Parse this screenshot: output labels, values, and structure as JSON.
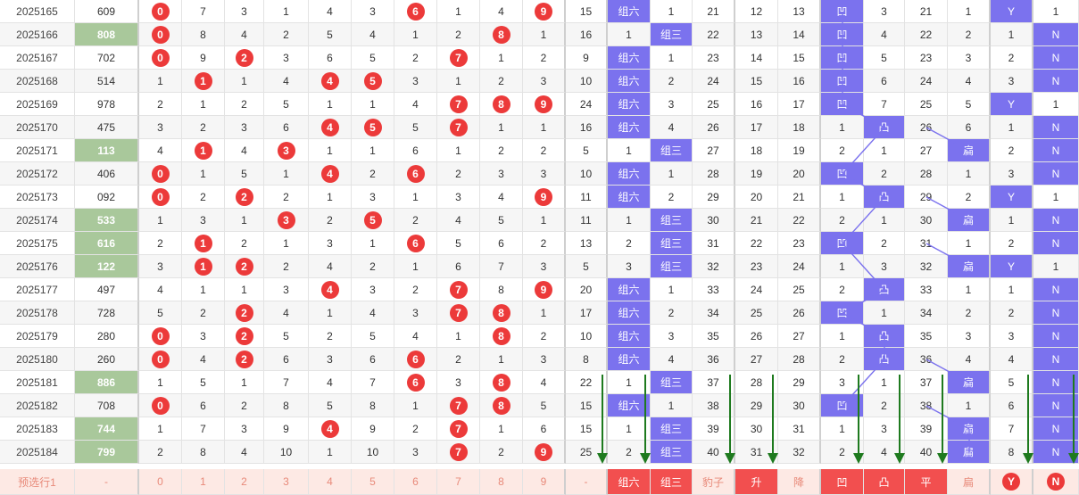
{
  "rows": [
    {
      "issue": "2025165",
      "num": "609",
      "green": false,
      "d": [
        "0",
        "7",
        "3",
        "1",
        "4",
        "3",
        "6",
        "1",
        "4",
        "9"
      ],
      "ball": [
        0,
        6,
        9
      ],
      "sum": "15",
      "zl": "组六",
      "z3": "1",
      "c1": "21",
      "c2": "12",
      "c3": "13",
      "ao": "凹",
      "tu": "3",
      "p": "21",
      "bian": "1",
      "y": "Y",
      "n": "1"
    },
    {
      "issue": "2025166",
      "num": "808",
      "green": true,
      "d": [
        "0",
        "8",
        "4",
        "2",
        "5",
        "4",
        "1",
        "2",
        "8",
        "1"
      ],
      "ball": [
        0,
        8
      ],
      "sum": "16",
      "zl": "1",
      "z3": "组三",
      "c1": "22",
      "c2": "13",
      "c3": "14",
      "ao": "凹",
      "tu": "4",
      "p": "22",
      "bian": "2",
      "y": "1",
      "n": "N"
    },
    {
      "issue": "2025167",
      "num": "702",
      "green": false,
      "d": [
        "0",
        "9",
        "2",
        "3",
        "6",
        "5",
        "2",
        "7",
        "1",
        "2"
      ],
      "ball": [
        0,
        2,
        7
      ],
      "sum": "9",
      "zl": "组六",
      "z3": "1",
      "c1": "23",
      "c2": "14",
      "c3": "15",
      "ao": "凹",
      "tu": "5",
      "p": "23",
      "bian": "3",
      "y": "2",
      "n": "N"
    },
    {
      "issue": "2025168",
      "num": "514",
      "green": false,
      "d": [
        "1",
        "1",
        "1",
        "4",
        "4",
        "5",
        "3",
        "1",
        "2",
        "3"
      ],
      "ball": [
        1,
        4,
        5
      ],
      "sum": "10",
      "zl": "组六",
      "z3": "2",
      "c1": "24",
      "c2": "15",
      "c3": "16",
      "ao": "凹",
      "tu": "6",
      "p": "24",
      "bian": "4",
      "y": "3",
      "n": "N"
    },
    {
      "issue": "2025169",
      "num": "978",
      "green": false,
      "d": [
        "2",
        "1",
        "2",
        "5",
        "1",
        "1",
        "4",
        "7",
        "8",
        "9"
      ],
      "ball": [
        7,
        8,
        9
      ],
      "sum": "24",
      "zl": "组六",
      "z3": "3",
      "c1": "25",
      "c2": "16",
      "c3": "17",
      "ao": "凹",
      "tu": "7",
      "p": "25",
      "bian": "5",
      "y": "Y",
      "n": "1"
    },
    {
      "issue": "2025170",
      "num": "475",
      "green": false,
      "d": [
        "3",
        "2",
        "3",
        "6",
        "4",
        "5",
        "5",
        "7",
        "1",
        "1"
      ],
      "ball": [
        4,
        5,
        7
      ],
      "sum": "16",
      "zl": "组六",
      "z3": "4",
      "c1": "26",
      "c2": "17",
      "c3": "18",
      "ao": "1",
      "tu": "凸",
      "p": "26",
      "bian": "6",
      "y": "1",
      "n": "N"
    },
    {
      "issue": "2025171",
      "num": "113",
      "green": true,
      "d": [
        "4",
        "1",
        "4",
        "3",
        "1",
        "1",
        "6",
        "1",
        "2",
        "2"
      ],
      "ball": [
        1,
        3
      ],
      "sum": "5",
      "zl": "1",
      "z3": "组三",
      "c1": "27",
      "c2": "18",
      "c3": "19",
      "ao": "2",
      "tu": "1",
      "p": "27",
      "bian": "扁",
      "y": "2",
      "n": "N"
    },
    {
      "issue": "2025172",
      "num": "406",
      "green": false,
      "d": [
        "0",
        "1",
        "5",
        "1",
        "4",
        "2",
        "6",
        "2",
        "3",
        "3"
      ],
      "ball": [
        0,
        4,
        6
      ],
      "sum": "10",
      "zl": "组六",
      "z3": "1",
      "c1": "28",
      "c2": "19",
      "c3": "20",
      "ao": "凹",
      "tu": "2",
      "p": "28",
      "bian": "1",
      "y": "3",
      "n": "N"
    },
    {
      "issue": "2025173",
      "num": "092",
      "green": false,
      "d": [
        "0",
        "2",
        "2",
        "2",
        "1",
        "3",
        "1",
        "3",
        "4",
        "9"
      ],
      "ball": [
        0,
        2,
        9
      ],
      "sum": "11",
      "zl": "组六",
      "z3": "2",
      "c1": "29",
      "c2": "20",
      "c3": "21",
      "ao": "1",
      "tu": "凸",
      "p": "29",
      "bian": "2",
      "y": "Y",
      "n": "1"
    },
    {
      "issue": "2025174",
      "num": "533",
      "green": true,
      "d": [
        "1",
        "3",
        "1",
        "3",
        "2",
        "5",
        "2",
        "4",
        "5",
        "1"
      ],
      "ball": [
        3,
        5
      ],
      "sum": "11",
      "zl": "1",
      "z3": "组三",
      "c1": "30",
      "c2": "21",
      "c3": "22",
      "ao": "2",
      "tu": "1",
      "p": "30",
      "bian": "扁",
      "y": "1",
      "n": "N"
    },
    {
      "issue": "2025175",
      "num": "616",
      "green": true,
      "d": [
        "2",
        "1",
        "2",
        "1",
        "3",
        "1",
        "6",
        "5",
        "6",
        "2"
      ],
      "ball": [
        1,
        6
      ],
      "sum": "13",
      "zl": "2",
      "z3": "组三",
      "c1": "31",
      "c2": "22",
      "c3": "23",
      "ao": "凹",
      "tu": "2",
      "p": "31",
      "bian": "1",
      "y": "2",
      "n": "N"
    },
    {
      "issue": "2025176",
      "num": "122",
      "green": true,
      "d": [
        "3",
        "1",
        "2",
        "2",
        "4",
        "2",
        "1",
        "6",
        "7",
        "3"
      ],
      "ball": [
        1,
        2
      ],
      "sum": "5",
      "zl": "3",
      "z3": "组三",
      "c1": "32",
      "c2": "23",
      "c3": "24",
      "ao": "1",
      "tu": "3",
      "p": "32",
      "bian": "扁",
      "y": "Y",
      "n": "1"
    },
    {
      "issue": "2025177",
      "num": "497",
      "green": false,
      "d": [
        "4",
        "1",
        "1",
        "3",
        "4",
        "3",
        "2",
        "7",
        "8",
        "9"
      ],
      "ball": [
        4,
        7,
        9
      ],
      "sum": "20",
      "zl": "组六",
      "z3": "1",
      "c1": "33",
      "c2": "24",
      "c3": "25",
      "ao": "2",
      "tu": "凸",
      "p": "33",
      "bian": "1",
      "y": "1",
      "n": "N"
    },
    {
      "issue": "2025178",
      "num": "728",
      "green": false,
      "d": [
        "5",
        "2",
        "2",
        "4",
        "1",
        "4",
        "3",
        "7",
        "8",
        "1"
      ],
      "ball": [
        2,
        7,
        8
      ],
      "sum": "17",
      "zl": "组六",
      "z3": "2",
      "c1": "34",
      "c2": "25",
      "c3": "26",
      "ao": "凹",
      "tu": "1",
      "p": "34",
      "bian": "2",
      "y": "2",
      "n": "N"
    },
    {
      "issue": "2025179",
      "num": "280",
      "green": false,
      "d": [
        "0",
        "3",
        "2",
        "5",
        "2",
        "5",
        "4",
        "1",
        "8",
        "2"
      ],
      "ball": [
        0,
        2,
        8
      ],
      "sum": "10",
      "zl": "组六",
      "z3": "3",
      "c1": "35",
      "c2": "26",
      "c3": "27",
      "ao": "1",
      "tu": "凸",
      "p": "35",
      "bian": "3",
      "y": "3",
      "n": "N"
    },
    {
      "issue": "2025180",
      "num": "260",
      "green": false,
      "d": [
        "0",
        "4",
        "2",
        "6",
        "3",
        "6",
        "6",
        "2",
        "1",
        "3"
      ],
      "ball": [
        0,
        2,
        6
      ],
      "sum": "8",
      "zl": "组六",
      "z3": "4",
      "c1": "36",
      "c2": "27",
      "c3": "28",
      "ao": "2",
      "tu": "凸",
      "p": "36",
      "bian": "4",
      "y": "4",
      "n": "N"
    },
    {
      "issue": "2025181",
      "num": "886",
      "green": true,
      "d": [
        "1",
        "5",
        "1",
        "7",
        "4",
        "7",
        "6",
        "3",
        "8",
        "4"
      ],
      "ball": [
        6,
        8
      ],
      "sum": "22",
      "zl": "1",
      "z3": "组三",
      "c1": "37",
      "c2": "28",
      "c3": "29",
      "ao": "3",
      "tu": "1",
      "p": "37",
      "bian": "扁",
      "y": "5",
      "n": "N"
    },
    {
      "issue": "2025182",
      "num": "708",
      "green": false,
      "d": [
        "0",
        "6",
        "2",
        "8",
        "5",
        "8",
        "1",
        "7",
        "8",
        "5"
      ],
      "ball": [
        0,
        7,
        8
      ],
      "sum": "15",
      "zl": "组六",
      "z3": "1",
      "c1": "38",
      "c2": "29",
      "c3": "30",
      "ao": "凹",
      "tu": "2",
      "p": "38",
      "bian": "1",
      "y": "6",
      "n": "N"
    },
    {
      "issue": "2025183",
      "num": "744",
      "green": true,
      "d": [
        "1",
        "7",
        "3",
        "9",
        "4",
        "9",
        "2",
        "7",
        "1",
        "6"
      ],
      "ball": [
        4,
        7
      ],
      "sum": "15",
      "zl": "1",
      "z3": "组三",
      "c1": "39",
      "c2": "30",
      "c3": "31",
      "ao": "1",
      "tu": "3",
      "p": "39",
      "bian": "扁",
      "y": "7",
      "n": "N"
    },
    {
      "issue": "2025184",
      "num": "799",
      "green": true,
      "d": [
        "2",
        "8",
        "4",
        "10",
        "1",
        "10",
        "3",
        "7",
        "2",
        "9"
      ],
      "ball": [
        7,
        9
      ],
      "sum": "25",
      "zl": "2",
      "z3": "组三",
      "c1": "40",
      "c2": "31",
      "c3": "32",
      "ao": "2",
      "tu": "4",
      "p": "40",
      "bian": "扁",
      "y": "8",
      "n": "N"
    }
  ],
  "prediction": {
    "label": "预选行1",
    "num": "-",
    "digits": [
      "0",
      "1",
      "2",
      "3",
      "4",
      "5",
      "6",
      "7",
      "8",
      "9"
    ],
    "sum": "-",
    "zl": "组六",
    "z3": "组三",
    "baozi": "豹子",
    "sheng": "升",
    "jiang": "降",
    "ao": "凹",
    "tu": "凸",
    "ping": "平",
    "bian": "扁",
    "y": "Y",
    "n": "N"
  },
  "colors": {
    "ball": "#ec3a3a",
    "purple": "#7b72ee",
    "green": "#a9c89b",
    "arrow": "#1e7a1e",
    "pred_red": "#f24f4f",
    "pred_bg": "#fde9e4"
  }
}
